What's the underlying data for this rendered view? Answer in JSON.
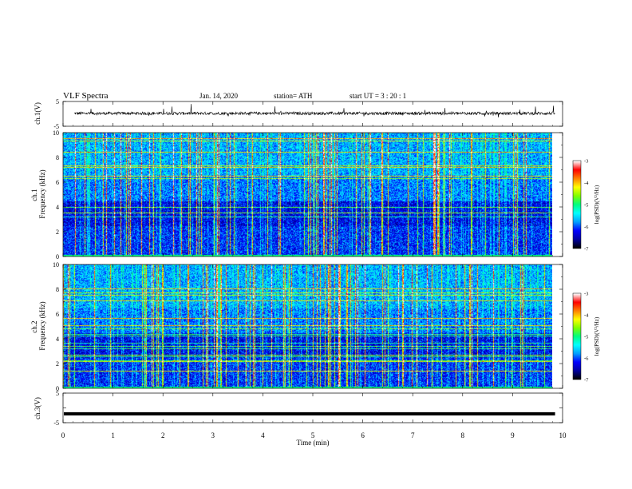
{
  "header": {
    "title": "VLF  Spectra",
    "date": "Jan. 14, 2020",
    "station": "station= ATH",
    "start_ut": "start  UT  =   3  : 20 : 1"
  },
  "chart_data": [
    {
      "type": "line",
      "panel": "ch1-waveform",
      "ylabel": "ch.1(V)",
      "ylim": [
        -5,
        5
      ],
      "yticks": [
        5,
        -5
      ],
      "xlim": [
        0,
        10
      ],
      "series": [
        {
          "description_values": "noisy waveform centered near 0 V with spikes",
          "baseline": 0.2,
          "noise_amplitude": 0.6,
          "spike_amplitude": 2.5
        }
      ]
    },
    {
      "type": "heatmap",
      "panel": "ch1-spectrogram",
      "ylabel": "ch.1\nFrequency  (kHz)",
      "ylabel_lines": [
        "ch.1",
        "Frequency  (kHz)"
      ],
      "ylim": [
        0,
        10
      ],
      "yticks": [
        "0",
        "2",
        "4",
        "6",
        "8",
        "10"
      ],
      "xlim": [
        0,
        10
      ],
      "data_end_min": 9.85,
      "colorbar": {
        "label": "log(PSD)(V²/Hz)",
        "min": -7,
        "max": -3,
        "ticks": [
          "-3",
          "-4",
          "-5",
          "-6",
          "-7"
        ]
      }
    },
    {
      "type": "heatmap",
      "panel": "ch2-spectrogram",
      "ylabel_lines": [
        "ch.2",
        "Frequency  (kHz)"
      ],
      "ylim": [
        0,
        10
      ],
      "yticks": [
        "0",
        "2",
        "4",
        "6",
        "8",
        "10"
      ],
      "xlim": [
        0,
        10
      ],
      "data_end_min": 9.85,
      "colorbar": {
        "label": "log(PSD)(V²/Hz)",
        "min": -7,
        "max": -3,
        "ticks": [
          "-3",
          "-4",
          "-5",
          "-6",
          "-7"
        ]
      }
    },
    {
      "type": "line",
      "panel": "ch3-waveform",
      "ylabel": "ch.3(V)",
      "ylim": [
        -5,
        5
      ],
      "yticks": [
        5,
        0,
        -5
      ],
      "ytick_labels": [
        "5",
        "",
        "-5"
      ],
      "xlim": [
        0,
        10
      ],
      "series": [
        {
          "constant_value": -2.0
        }
      ]
    }
  ],
  "xaxis": {
    "label": "Time  (min)",
    "ticks": [
      "0",
      "1",
      "2",
      "3",
      "4",
      "5",
      "6",
      "7",
      "8",
      "9",
      "10"
    ]
  },
  "colors": {
    "colormap": [
      "#000000",
      "#0000a0",
      "#0000ff",
      "#00a0ff",
      "#00ffff",
      "#00ff80",
      "#80ff00",
      "#ffff00",
      "#ff8000",
      "#ff0000",
      "#ffffff"
    ]
  }
}
